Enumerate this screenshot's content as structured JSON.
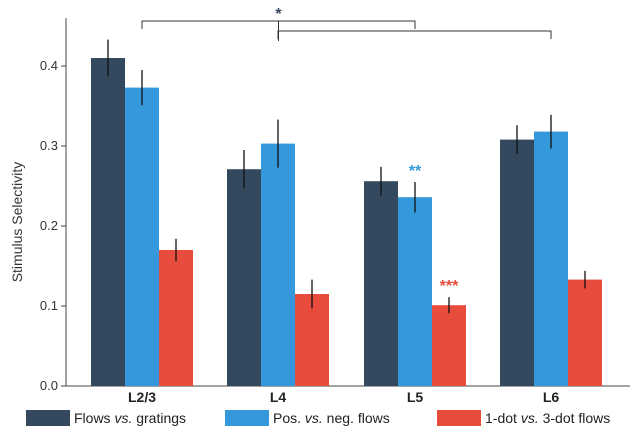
{
  "chart_data": {
    "type": "bar",
    "categories": [
      "L2/3",
      "L4",
      "L5",
      "L6"
    ],
    "ylabel": "Stimulus Selectivity",
    "xlabel": "",
    "ylim": [
      0,
      0.45
    ],
    "yticks": [
      "0.0",
      "0.1",
      "0.2",
      "0.3",
      "0.4"
    ],
    "grid": false,
    "legend_position": "bottom",
    "series": [
      {
        "name": "Flows vs. gratings",
        "color": "#34495e",
        "values": [
          0.41,
          0.271,
          0.256,
          0.308
        ],
        "errors": [
          0.023,
          0.024,
          0.018,
          0.018
        ]
      },
      {
        "name": "Pos. vs. neg. flows",
        "color": "#3498db",
        "values": [
          0.373,
          0.303,
          0.236,
          0.318
        ],
        "errors": [
          0.022,
          0.03,
          0.019,
          0.021
        ]
      },
      {
        "name": "1-dot vs. 3-dot flows",
        "color": "#e74c3c",
        "values": [
          0.17,
          0.115,
          0.101,
          0.133
        ],
        "errors": [
          0.014,
          0.018,
          0.01,
          0.011
        ]
      }
    ],
    "annotations": [
      {
        "text": "*",
        "color": "#34495e",
        "type": "comparison-bracket",
        "between": [
          "L2/3",
          "L5"
        ]
      },
      {
        "text": "",
        "color": "#34495e",
        "type": "comparison-bracket",
        "between": [
          "L4",
          "L6"
        ]
      },
      {
        "text": "**",
        "color": "#3498db",
        "category": "L5",
        "series": 1
      },
      {
        "text": "***",
        "color": "#e74c3c",
        "category": "L5",
        "series": 2
      }
    ]
  },
  "legend": {
    "items": [
      {
        "pre": "Flows ",
        "em": "vs.",
        "post": " gratings",
        "color": "#34495e"
      },
      {
        "pre": "Pos. ",
        "em": "vs.",
        "post": " neg. flows",
        "color": "#3498db"
      },
      {
        "pre": "1-dot ",
        "em": "vs.",
        "post": " 3-dot flows",
        "color": "#e74c3c"
      }
    ]
  }
}
